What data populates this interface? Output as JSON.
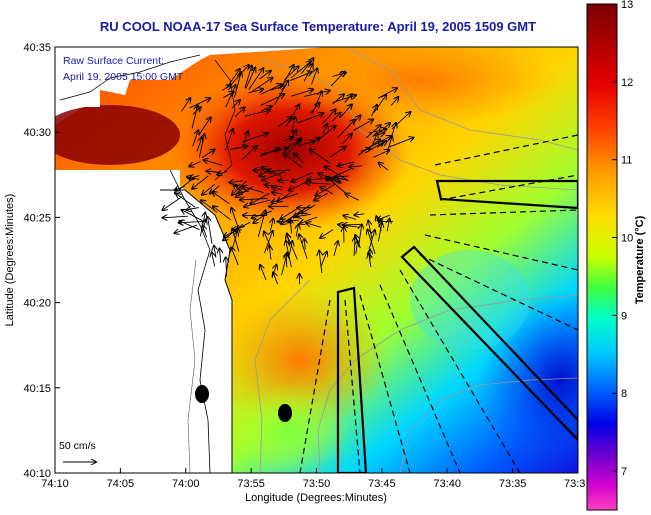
{
  "title": "RU COOL  NOAA-17  Sea Surface Temperature:  April 19, 2005 1509 GMT",
  "legend": {
    "line1": "Raw Surface Current:",
    "line2": "April 19, 2005 15:00 GMT"
  },
  "axes": {
    "xlabel": "Longitude (Degrees:Minutes)",
    "ylabel": "Latitude (Degrees:Minutes)",
    "xticks": [
      "74:10",
      "74:05",
      "74:00",
      "73:55",
      "73:50",
      "73:45",
      "73:40",
      "73:35",
      "73:3"
    ],
    "yticks": [
      "40:35",
      "40:30",
      "40:25",
      "40:20",
      "40:15",
      "40:10"
    ]
  },
  "colorbar": {
    "label": "Temperature (°C)",
    "ticks": [
      "13",
      "12",
      "11",
      "10",
      "9",
      "8",
      "7"
    ],
    "min": 6.5,
    "max": 13
  },
  "scale": {
    "label": "50 cm/s"
  },
  "colors": {
    "title": "#1a1aa8",
    "land": "#ffffff",
    "hot": "#8b0000",
    "cold": "#0000cc"
  }
}
